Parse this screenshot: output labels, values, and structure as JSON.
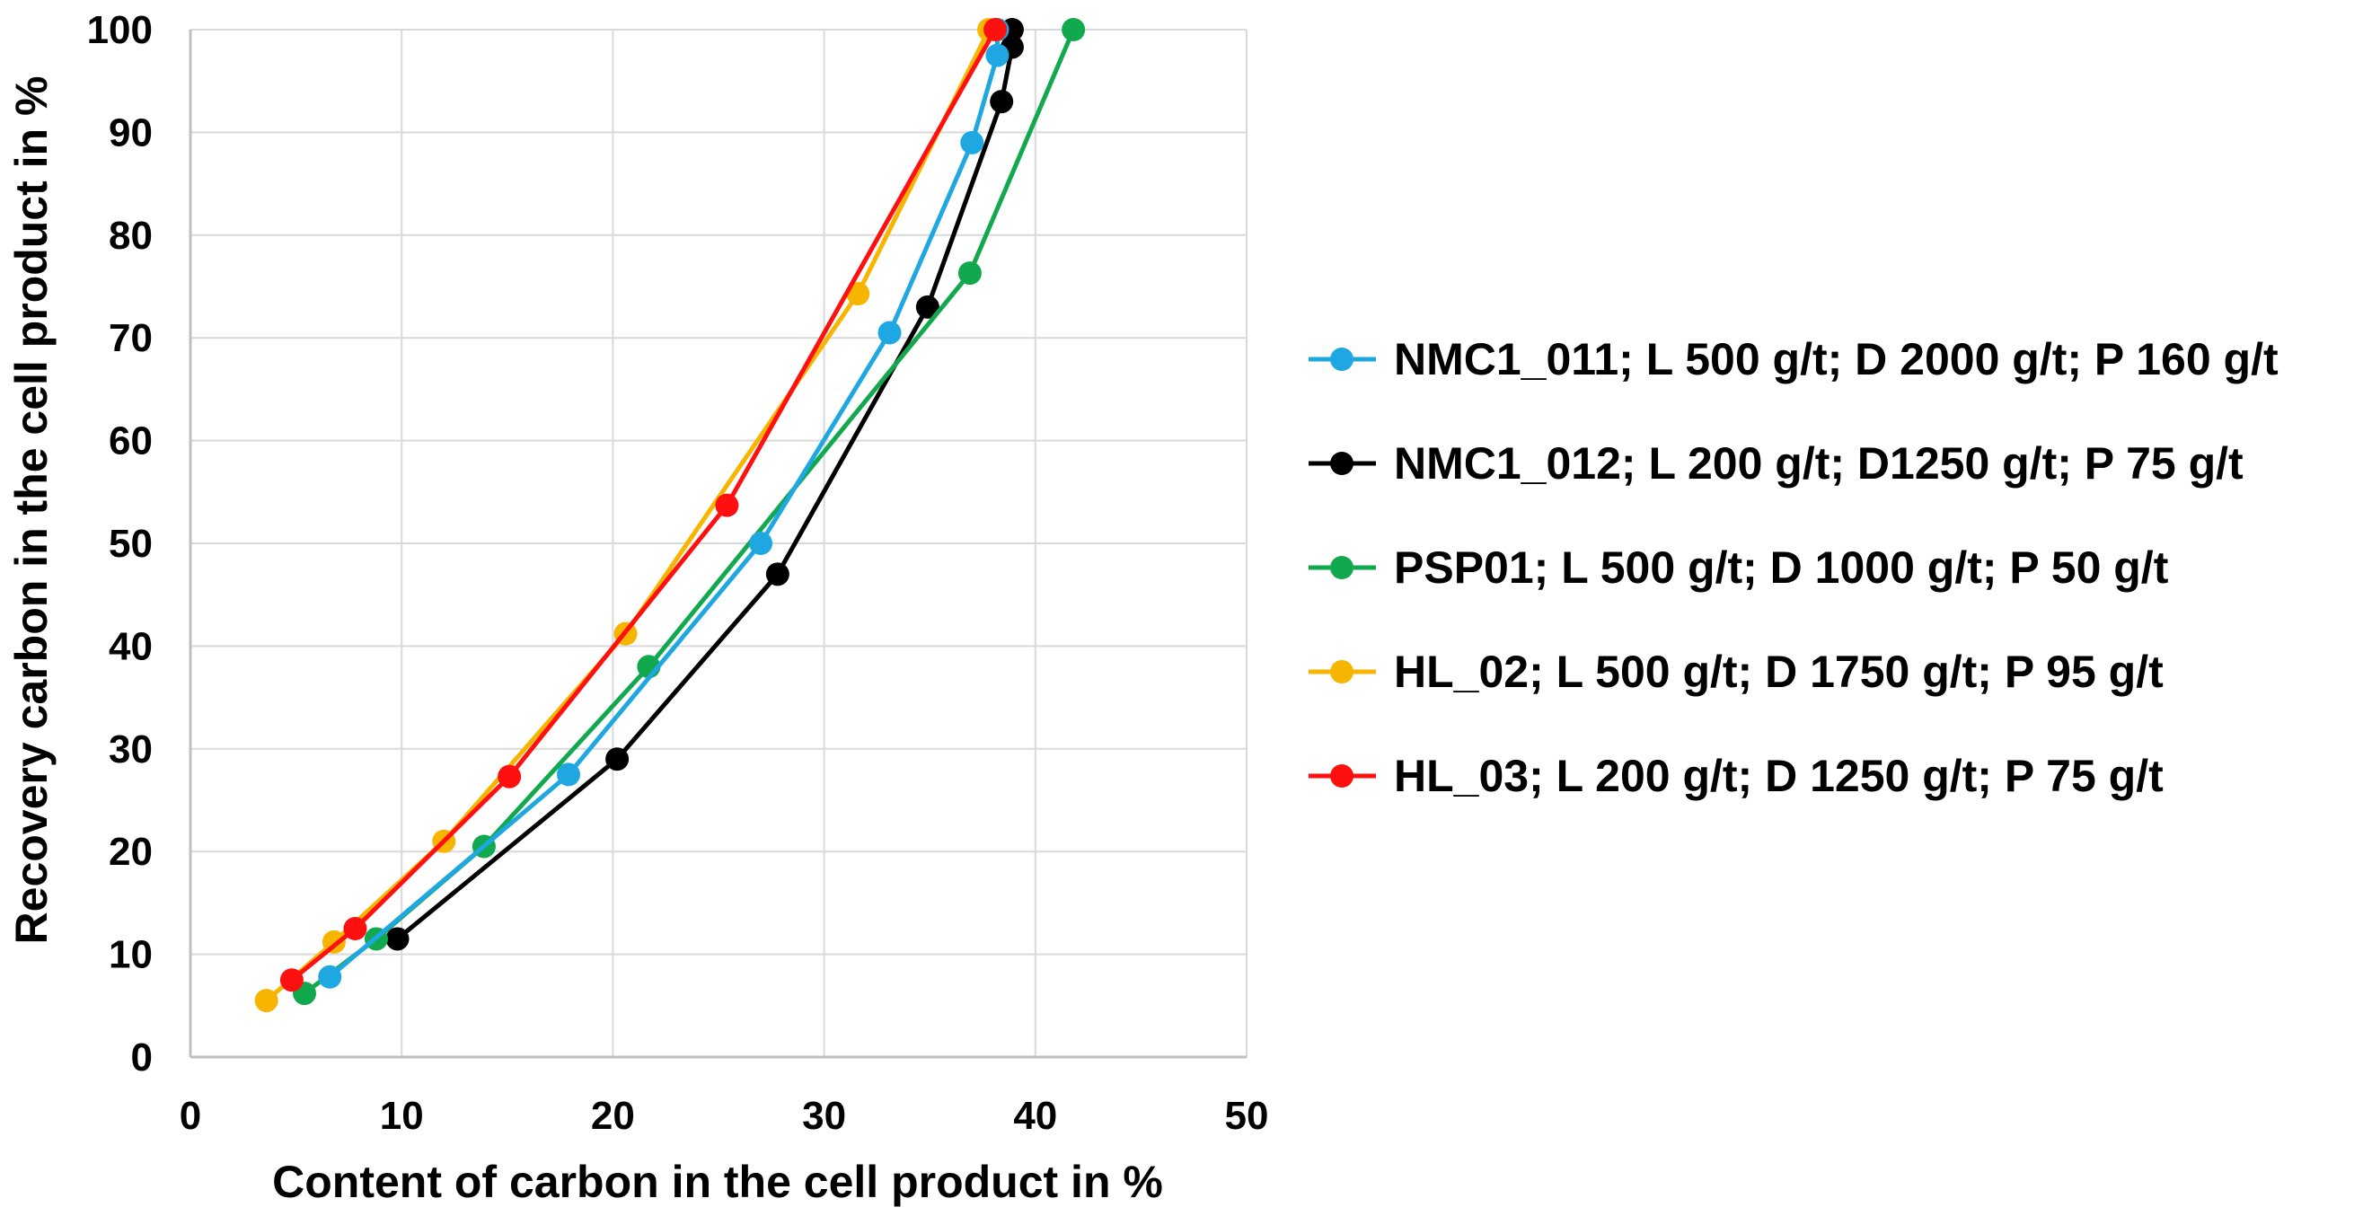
{
  "chart_data": {
    "type": "line",
    "title": "",
    "xlabel": "Content of carbon in the cell product in %",
    "ylabel": "Recovery carbon in the cell product in %",
    "xlim": [
      0,
      50
    ],
    "ylim": [
      0,
      100
    ],
    "xticks": [
      0,
      10,
      20,
      30,
      40,
      50
    ],
    "yticks": [
      0,
      10,
      20,
      30,
      40,
      50,
      60,
      70,
      80,
      90,
      100
    ],
    "x_tick_labels": [
      "0",
      "10",
      "20",
      "30",
      "40",
      "50"
    ],
    "y_tick_labels": [
      "0",
      "10",
      "20",
      "30",
      "40",
      "50",
      "60",
      "70",
      "80",
      "90",
      "100"
    ],
    "grid": true,
    "legend_position": "right",
    "series": [
      {
        "name": "NMC1_011; L 500 g/t; D 2000 g/t; P 160 g/t",
        "color": "#1EA7E1",
        "x": [
          6.6,
          17.9,
          27.0,
          33.1,
          37.0,
          38.2,
          38.2
        ],
        "y": [
          7.8,
          27.5,
          50.0,
          70.5,
          89.0,
          97.5,
          100.0
        ]
      },
      {
        "name": "NMC1_012; L 200 g/t; D1250 g/t; P 75 g/t",
        "color": "#000000",
        "x": [
          9.8,
          20.2,
          27.8,
          34.9,
          38.4,
          38.9,
          38.9
        ],
        "y": [
          11.5,
          29.0,
          47.0,
          73.0,
          93.0,
          98.3,
          100.0
        ]
      },
      {
        "name": "PSP01; L 500 g/t; D 1000 g/t; P 50 g/t",
        "color": "#12A94E",
        "x": [
          5.4,
          8.8,
          13.9,
          21.7,
          36.9,
          41.8
        ],
        "y": [
          6.2,
          11.5,
          20.5,
          38.0,
          76.3,
          100.0
        ]
      },
      {
        "name": "HL_02; L 500 g/t; D 1750 g/t; P 95 g/t",
        "color": "#F7B500",
        "x": [
          3.6,
          6.8,
          12.0,
          20.6,
          31.6,
          37.8
        ],
        "y": [
          5.5,
          11.2,
          21.0,
          41.2,
          74.3,
          100.0
        ]
      },
      {
        "name": "HL_03; L 200 g/t; D 1250 g/t; P 75 g/t",
        "color": "#FF1010",
        "x": [
          4.8,
          7.8,
          15.1,
          25.4,
          38.1
        ],
        "y": [
          7.5,
          12.5,
          27.3,
          53.7,
          100.0
        ]
      }
    ]
  }
}
